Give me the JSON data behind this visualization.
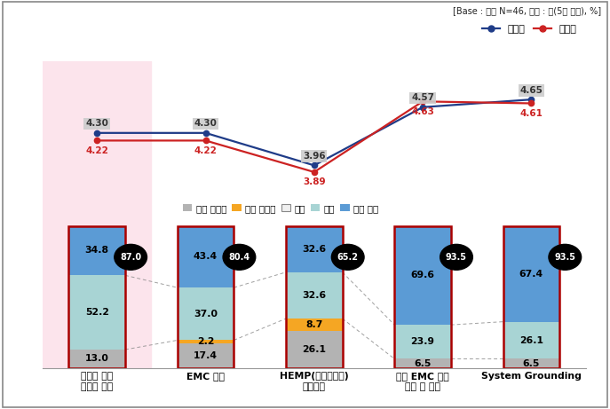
{
  "base_text": "[Base : 전체 N=46, 단위 : 점(5점 척도), %]",
  "categories": [
    "강의에 대한\n전반적 평가",
    "EMC 개론",
    "HEMP(고도전자기)\n방호방안",
    "군용 EMC 필터\n설계 및 대책",
    "System Grounding"
  ],
  "necessity": [
    4.3,
    4.3,
    3.96,
    4.57,
    4.65
  ],
  "satisfaction": [
    4.22,
    4.22,
    3.89,
    4.63,
    4.61
  ],
  "bar_data_ordered": {
    "매우 불만족": [
      13.0,
      17.4,
      26.1,
      6.5,
      6.5
    ],
    "다소 불만족": [
      0.0,
      2.2,
      8.7,
      0.0,
      0.0
    ],
    "보통": [
      0.0,
      0.0,
      0.0,
      0.0,
      0.0
    ],
    "만족": [
      52.2,
      37.0,
      32.6,
      23.9,
      26.1
    ],
    "매우 만족": [
      34.8,
      43.4,
      32.6,
      69.6,
      67.4
    ]
  },
  "top2_labels": [
    87.0,
    80.4,
    65.2,
    93.5,
    93.5
  ],
  "bar_colors": {
    "매우 불만족": "#b3b3b3",
    "다소 불만족": "#f5a623",
    "보통": "#f0f0f0",
    "만족": "#a8d4d4",
    "매우 만족": "#5b9bd5"
  },
  "necessity_color": "#1f3c88",
  "satisfaction_color": "#cc2222",
  "first_bar_bg": "#fce4ec",
  "bar_border_color": "#aa0000",
  "legend_items": [
    "매우 불만족",
    "다소 불만족",
    "보통",
    "만족",
    "매우 만족"
  ],
  "bar_width": 0.52,
  "ylim_bar_max": 115
}
